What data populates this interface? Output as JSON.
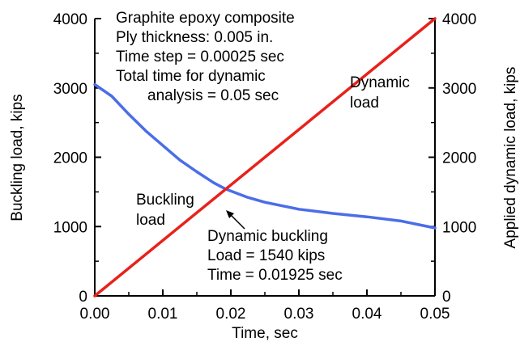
{
  "chart_data": {
    "type": "line",
    "xlabel": "Time, sec",
    "ylabel_left": "Buckling load, kips",
    "ylabel_right": "Applied dynamic load, kips",
    "xlim": [
      0,
      0.05
    ],
    "ylim": [
      0,
      4000
    ],
    "x_ticks": [
      "0.00",
      "0.01",
      "0.02",
      "0.03",
      "0.04",
      "0.05"
    ],
    "y_ticks": [
      "0",
      "1000",
      "2000",
      "3000",
      "4000"
    ],
    "grid": false,
    "series": [
      {
        "name": "Buckling load",
        "color": "#4a6ee8",
        "x": [
          0,
          0.0025,
          0.005,
          0.0075,
          0.01,
          0.0125,
          0.015,
          0.0175,
          0.01925,
          0.0225,
          0.025,
          0.03,
          0.035,
          0.04,
          0.045,
          0.05
        ],
        "y": [
          3050,
          2880,
          2620,
          2380,
          2170,
          1960,
          1790,
          1630,
          1540,
          1420,
          1350,
          1250,
          1190,
          1140,
          1080,
          980
        ]
      },
      {
        "name": "Dynamic load",
        "color": "#e8211b",
        "x": [
          0,
          0.05
        ],
        "y": [
          0,
          4000
        ]
      }
    ],
    "info_lines": [
      "Graphite epoxy composite",
      "Ply thickness: 0.005 in.",
      "Time step = 0.00025 sec",
      "Total time for dynamic",
      "analysis = 0.05 sec"
    ],
    "curve_labels": {
      "buckling": [
        "Buckling",
        "load"
      ],
      "dynamic": [
        "Dynamic",
        "load"
      ]
    },
    "point_annotation": {
      "lines": [
        "Dynamic buckling",
        "Load = 1540 kips",
        "Time = 0.01925 sec"
      ],
      "x": 0.01925,
      "y": 1540
    }
  }
}
